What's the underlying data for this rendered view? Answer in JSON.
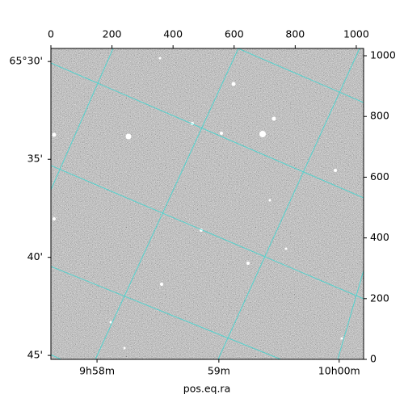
{
  "chart_data": {
    "type": "image",
    "x_label": "pos.eq.ra",
    "xlim": [
      0,
      1024
    ],
    "ylim": [
      0,
      1024
    ],
    "xticks": [
      0,
      200,
      400,
      600,
      800,
      1000
    ],
    "yticks": [
      0,
      200,
      400,
      600,
      800,
      1000
    ],
    "dec_ticks": [
      {
        "value": 981,
        "label": "65°30'"
      },
      {
        "value": 659,
        "label": "35'"
      },
      {
        "value": 336,
        "label": "40'"
      },
      {
        "value": 13,
        "label": "45'"
      }
    ],
    "ra_ticks": [
      {
        "value": 151,
        "label": "9h58m"
      },
      {
        "value": 550,
        "label": "59m"
      },
      {
        "value": 944,
        "label": "10h00m"
      }
    ]
  }
}
